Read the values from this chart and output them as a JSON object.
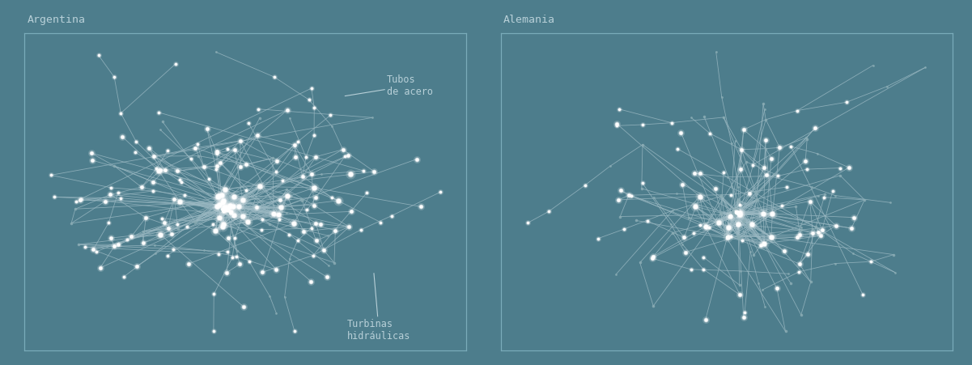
{
  "background_color": "#4d7d8c",
  "panel_edge_color": "#7aacba",
  "edge_color": "#9ab8c2",
  "node_white": "#ffffff",
  "node_gray": "#8aacb4",
  "title_color": "#b8d0d8",
  "label_color": "#b8d0d8",
  "title_left": "Argentina",
  "title_right": "Alemania",
  "label_tubos": "Tubos\nde acero",
  "label_turbinas": "Turbinas\nhidráulicas",
  "figsize": [
    12.01,
    4.51
  ],
  "dpi": 100
}
